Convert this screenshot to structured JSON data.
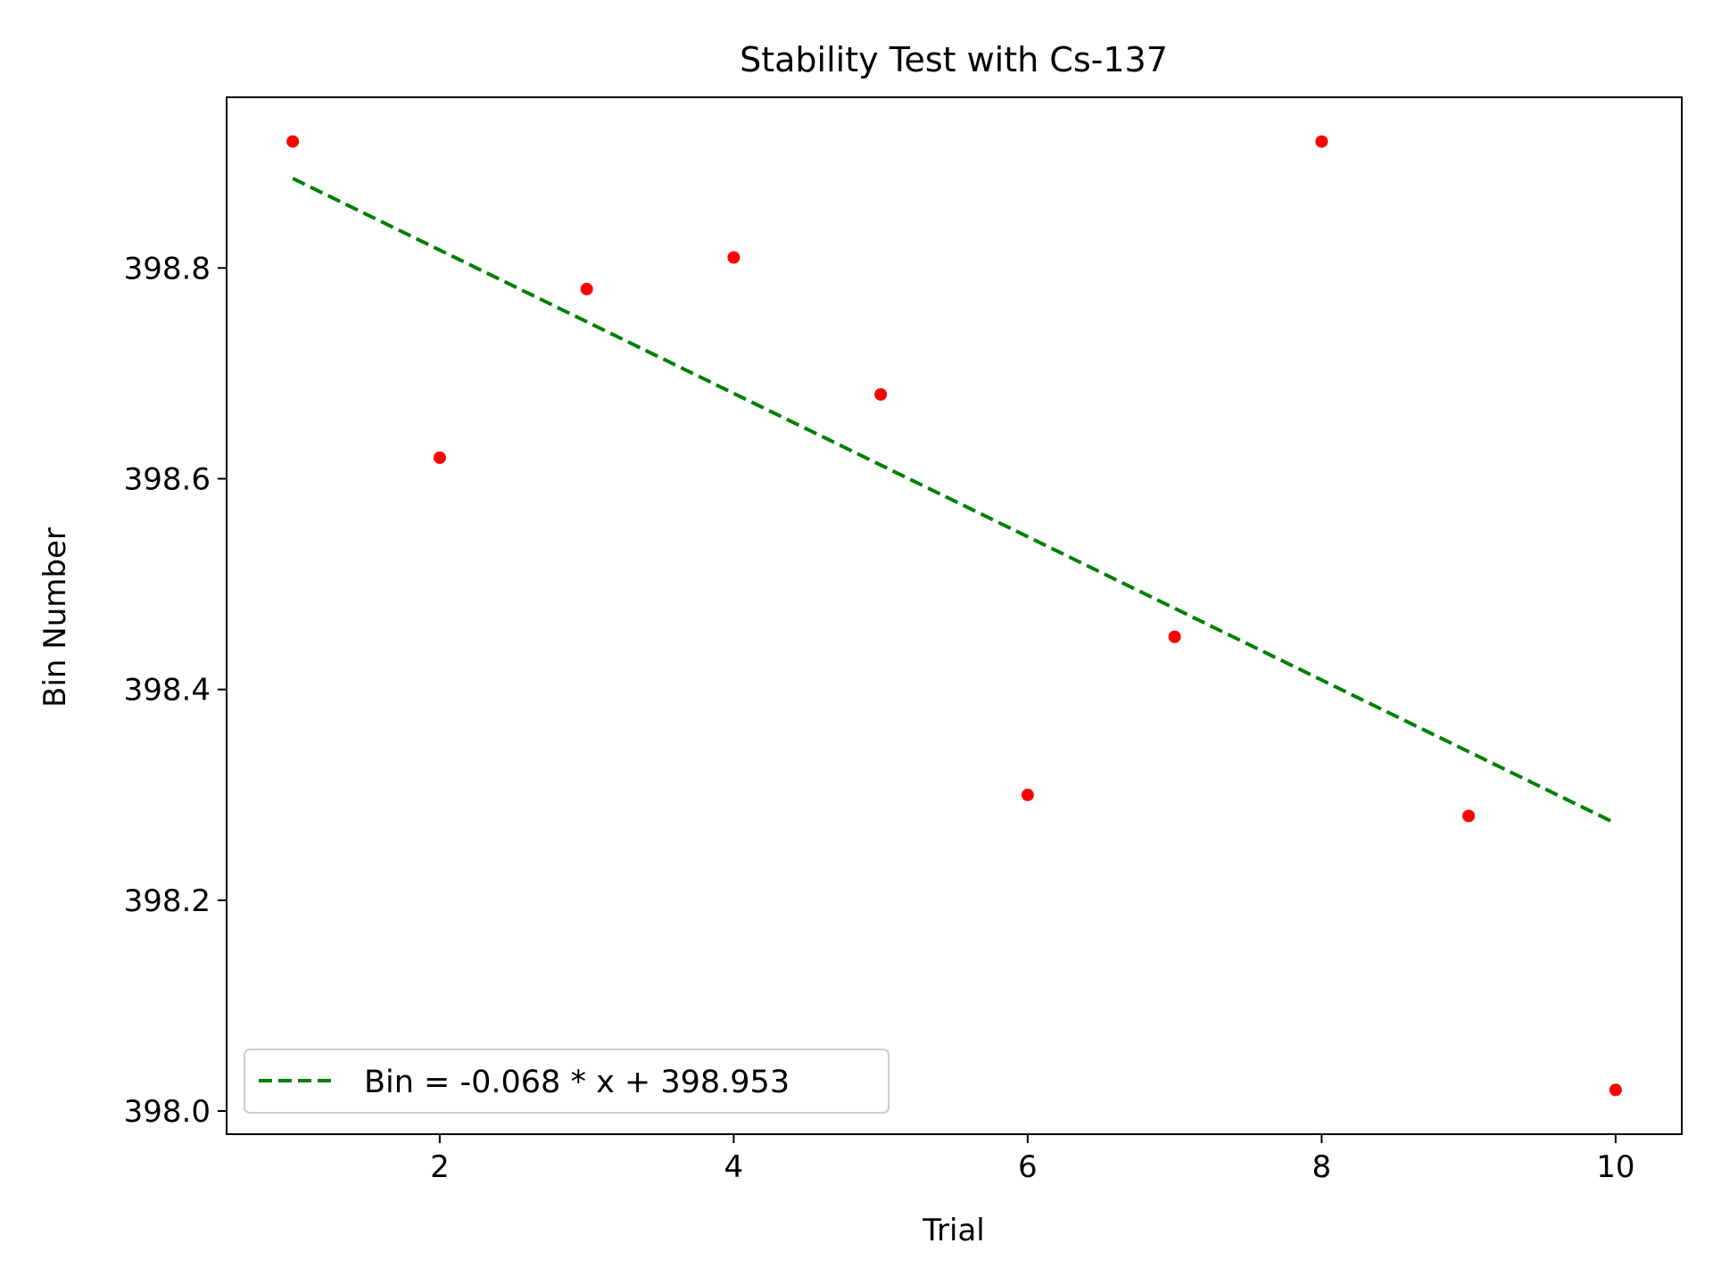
{
  "chart_data": {
    "type": "scatter",
    "title": "Stability Test with Cs-137",
    "xlabel": "Trial",
    "ylabel": "Bin Number",
    "xlim": [
      0.55,
      10.45
    ],
    "ylim": [
      397.978,
      398.962
    ],
    "xticks": [
      2,
      4,
      6,
      8,
      10
    ],
    "yticks": [
      398.0,
      398.2,
      398.4,
      398.6,
      398.8
    ],
    "xtick_labels": [
      "2",
      "4",
      "6",
      "8",
      "10"
    ],
    "ytick_labels": [
      "398.0",
      "398.2",
      "398.4",
      "398.6",
      "398.8"
    ],
    "grid": false,
    "legend_position": "lower-left",
    "series": [
      {
        "kind": "points",
        "color": "#ff0000",
        "x": [
          1,
          2,
          3,
          4,
          5,
          6,
          7,
          8,
          9,
          10
        ],
        "y": [
          398.92,
          398.62,
          398.78,
          398.81,
          398.68,
          398.3,
          398.45,
          398.92,
          398.28,
          398.02
        ]
      },
      {
        "kind": "fit-line",
        "name": "Bin = -0.068 * x + 398.953",
        "color": "#008000",
        "style": "dashed",
        "slope": -0.068,
        "intercept": 398.953,
        "x_range": [
          1,
          10
        ]
      }
    ]
  }
}
